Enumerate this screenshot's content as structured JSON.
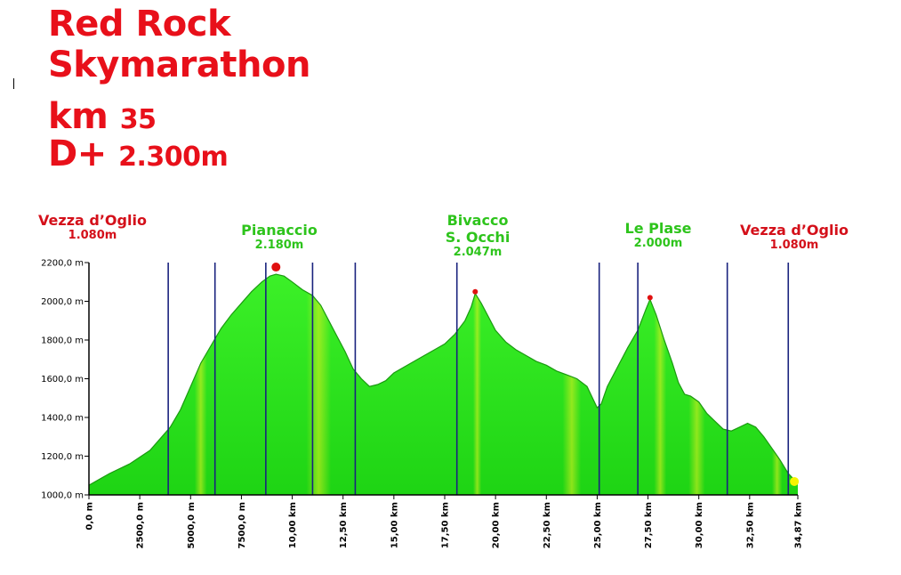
{
  "header": {
    "line1": "Red Rock",
    "line2": "Skymarathon",
    "distance_prefix": "km",
    "distance_value": "35",
    "gain_prefix": "D+",
    "gain_value": "2.300m"
  },
  "waypoints": [
    {
      "name": "Vezza d’Oglio",
      "elev_num": "1.080",
      "elev_unit": "m",
      "color": "red"
    },
    {
      "name": "Pianaccio",
      "elev_num": "2.180",
      "elev_unit": "m",
      "color": "green"
    },
    {
      "name": "Bivacco",
      "name2": "S. Occhi",
      "elev_num": "2.047",
      "elev_unit": "m",
      "color": "green"
    },
    {
      "name": "Le Plase",
      "elev_num": "2.000",
      "elev_unit": "m",
      "color": "green"
    },
    {
      "name": "Vezza d’Oglio",
      "elev_num": "1.080",
      "elev_unit": "m",
      "color": "red"
    }
  ],
  "colors": {
    "title": "#e8101a",
    "fill": "#2ee81c",
    "line": "#1a9a10",
    "vlines": "#1a237e",
    "peak_marker": "#e01010",
    "finish_marker": "#f5f500"
  },
  "chart_data": {
    "type": "area",
    "title": "",
    "xlabel": "",
    "ylabel": "",
    "xlim": [
      0,
      34.87
    ],
    "ylim": [
      1000,
      2200
    ],
    "grid": false,
    "y_ticks": [
      1000,
      1200,
      1400,
      1600,
      1800,
      2000,
      2200
    ],
    "y_tick_labels": [
      "1000,0 m",
      "1200,0 m",
      "1400,0 m",
      "1600,0 m",
      "1800,0 m",
      "2000,0 m",
      "2200,0 m"
    ],
    "x_ticks": [
      0,
      2.5,
      5,
      7.5,
      10,
      12.5,
      15,
      17.5,
      20,
      22.5,
      25,
      27.5,
      30,
      32.5,
      34.87
    ],
    "x_tick_labels": [
      "0,0 m",
      "2500,0 m",
      "5000,0 m",
      "7500,0 m",
      "10,00 km",
      "12,50 km",
      "15,00 km",
      "17,50 km",
      "20,00 km",
      "22,50 km",
      "25,00 km",
      "27,50 km",
      "30,00 km",
      "32,50 km",
      "34,87 km"
    ],
    "vertical_markers_km": [
      3.9,
      6.2,
      8.7,
      11.0,
      13.1,
      18.1,
      25.1,
      27.0,
      31.4,
      34.4
    ],
    "peaks": [
      {
        "x": 9.2,
        "y": 2140
      },
      {
        "x": 19.0,
        "y": 2040
      },
      {
        "x": 27.6,
        "y": 2010
      }
    ],
    "finish": {
      "x": 34.7,
      "y": 1060
    },
    "series": [
      {
        "x": [
          0,
          0.5,
          1,
          2,
          3,
          4,
          4.5,
          5,
          5.5,
          6,
          6.5,
          7,
          7.5,
          8,
          8.5,
          8.9,
          9.2,
          9.6,
          10,
          10.5,
          11,
          11.4,
          11.8,
          12.2,
          12.6,
          13.0,
          13.4,
          13.8,
          14.2,
          14.6,
          15,
          15.5,
          16,
          16.5,
          17,
          17.5,
          18,
          18.5,
          18.8,
          19.0,
          19.3,
          19.7,
          20,
          20.5,
          21,
          21.5,
          22,
          22.5,
          23,
          23.5,
          24,
          24.5,
          25,
          25.2,
          25.5,
          26,
          26.5,
          27,
          27.4,
          27.6,
          27.9,
          28.3,
          28.7,
          29,
          29.3,
          29.6,
          30,
          30.4,
          30.8,
          31.2,
          31.6,
          32,
          32.4,
          32.8,
          33.2,
          33.6,
          34,
          34.4,
          34.87
        ],
        "y": [
          1050,
          1080,
          1110,
          1160,
          1230,
          1350,
          1440,
          1560,
          1680,
          1770,
          1860,
          1930,
          1990,
          2050,
          2100,
          2130,
          2140,
          2130,
          2100,
          2060,
          2030,
          1980,
          1900,
          1820,
          1740,
          1650,
          1600,
          1560,
          1570,
          1590,
          1630,
          1660,
          1690,
          1720,
          1750,
          1780,
          1830,
          1900,
          1970,
          2040,
          1990,
          1910,
          1850,
          1790,
          1750,
          1720,
          1690,
          1670,
          1640,
          1620,
          1600,
          1560,
          1450,
          1470,
          1560,
          1660,
          1760,
          1850,
          1960,
          2010,
          1930,
          1800,
          1680,
          1580,
          1520,
          1510,
          1480,
          1420,
          1380,
          1340,
          1330,
          1350,
          1370,
          1350,
          1300,
          1240,
          1180,
          1110,
          1060
        ]
      }
    ]
  }
}
